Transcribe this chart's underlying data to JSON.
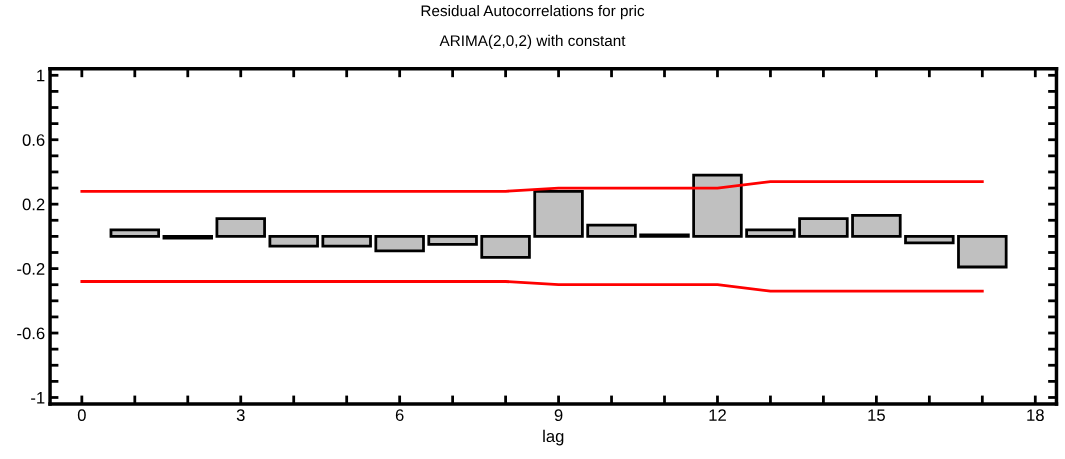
{
  "chart_data": {
    "type": "bar",
    "title": "Residual Autocorrelations for pric",
    "subtitle": "ARIMA(2,0,2) with constant",
    "xlabel": "lag",
    "x": [
      1,
      2,
      3,
      4,
      5,
      6,
      7,
      8,
      9,
      10,
      11,
      12,
      13,
      14,
      15,
      16,
      17
    ],
    "series": [
      {
        "color": "#c0c0c0",
        "values": [
          0.04,
          -0.01,
          0.11,
          -0.06,
          -0.06,
          -0.09,
          -0.05,
          -0.13,
          0.28,
          0.07,
          0.01,
          0.38,
          0.04,
          0.11,
          0.13,
          -0.04,
          -0.19
        ]
      },
      {
        "type": "line",
        "color": "#ff0000",
        "x": [
          0,
          1,
          2,
          3,
          4,
          5,
          6,
          7,
          8,
          9,
          10,
          11,
          12,
          13,
          14,
          15,
          16,
          17
        ],
        "values": [
          0.28,
          0.28,
          0.28,
          0.28,
          0.28,
          0.28,
          0.28,
          0.28,
          0.28,
          0.3,
          0.3,
          0.3,
          0.3,
          0.34,
          0.34,
          0.34,
          0.34,
          0.34
        ]
      },
      {
        "type": "line",
        "color": "#ff0000",
        "x": [
          0,
          1,
          2,
          3,
          4,
          5,
          6,
          7,
          8,
          9,
          10,
          11,
          12,
          13,
          14,
          15,
          16,
          17
        ],
        "values": [
          -0.28,
          -0.28,
          -0.28,
          -0.28,
          -0.28,
          -0.28,
          -0.28,
          -0.28,
          -0.28,
          -0.3,
          -0.3,
          -0.3,
          -0.3,
          -0.34,
          -0.34,
          -0.34,
          -0.34,
          -0.34
        ]
      }
    ],
    "xlim": [
      -0.6,
      18.4
    ],
    "xticks": [
      0,
      {
        "value": 1,
        "label": null
      },
      {
        "value": 2,
        "label": null
      },
      3,
      {
        "value": 4,
        "label": null
      },
      {
        "value": 5,
        "label": null
      },
      6,
      {
        "value": 7,
        "label": null
      },
      {
        "value": 8,
        "label": null
      },
      9,
      {
        "value": 10,
        "label": null
      },
      {
        "value": 11,
        "label": null
      },
      12,
      {
        "value": 13,
        "label": null
      },
      {
        "value": 14,
        "label": null
      },
      15,
      {
        "value": 16,
        "label": null
      },
      {
        "value": 17,
        "label": null
      },
      18
    ],
    "ylim": [
      -1.04,
      1.04
    ],
    "yticks": [
      -1,
      {
        "value": -0.9,
        "label": null
      },
      {
        "value": -0.8,
        "label": null
      },
      {
        "value": -0.7,
        "label": null
      },
      -0.6,
      {
        "value": -0.5,
        "label": null
      },
      {
        "value": -0.4,
        "label": null
      },
      {
        "value": -0.3,
        "label": null
      },
      -0.2,
      {
        "value": -0.1,
        "label": null
      },
      {
        "value": 0,
        "label": null
      },
      {
        "value": 0.1,
        "label": null
      },
      0.2,
      {
        "value": 0.3,
        "label": null
      },
      {
        "value": 0.4,
        "label": null
      },
      {
        "value": 0.5,
        "label": null
      },
      0.6,
      {
        "value": 0.7,
        "label": null
      },
      {
        "value": 0.8,
        "label": null
      },
      {
        "value": 0.9,
        "label": null
      },
      1
    ],
    "grid": false,
    "legend": false
  }
}
